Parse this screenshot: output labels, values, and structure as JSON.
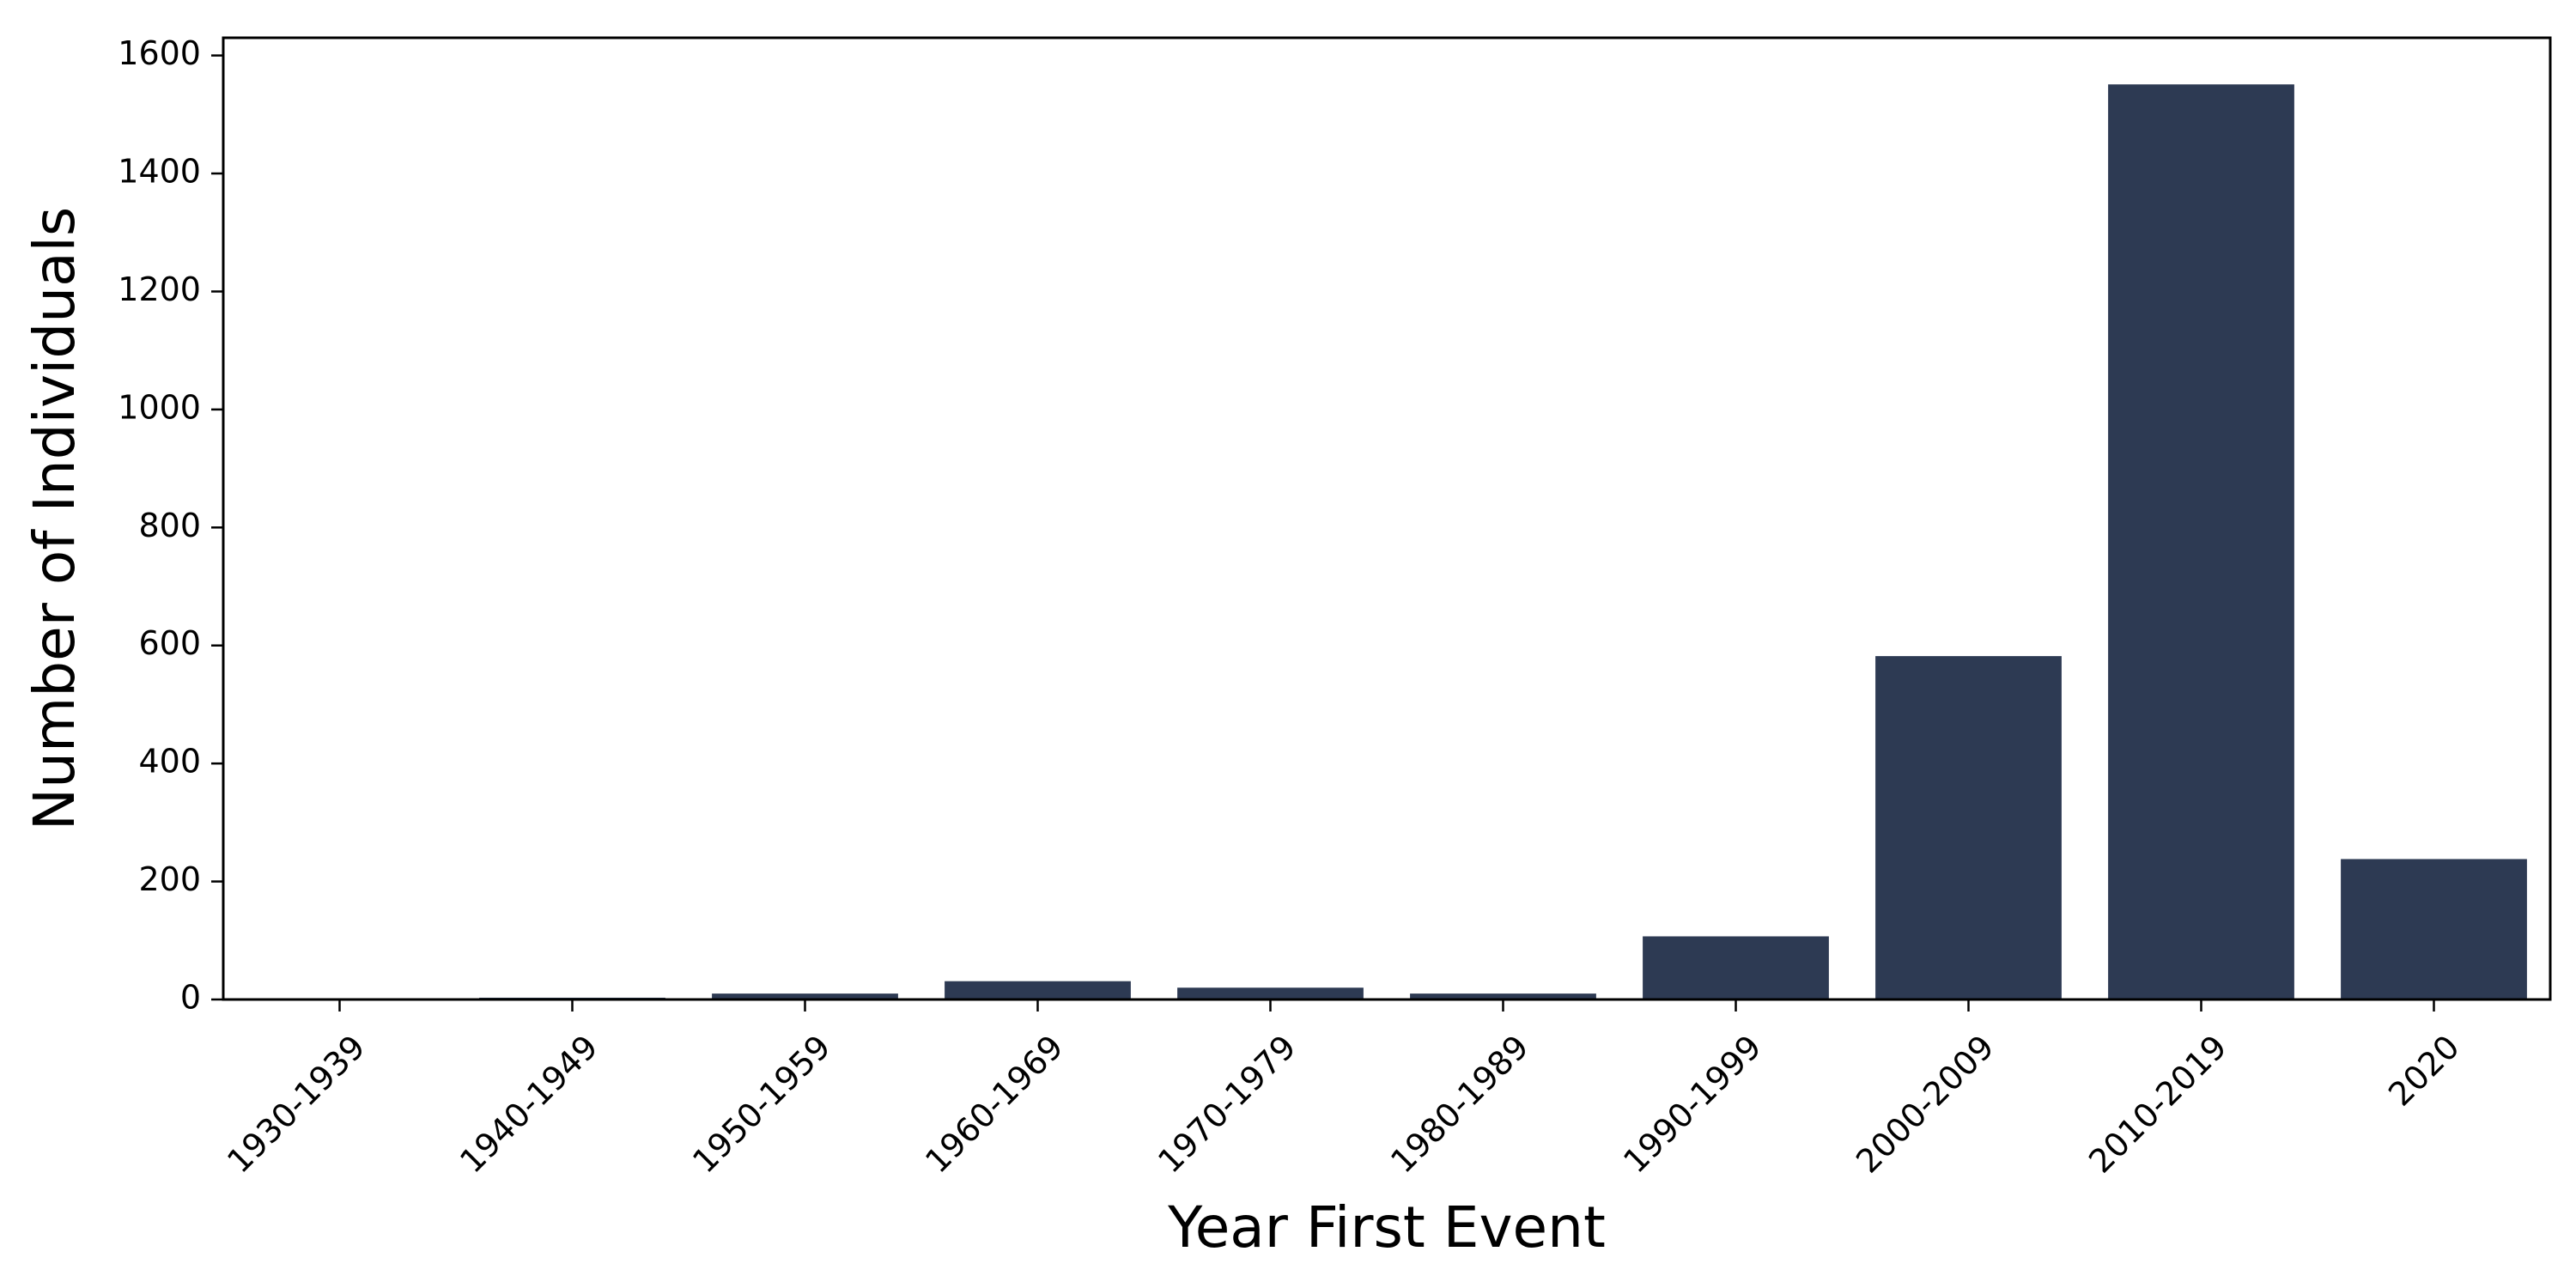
{
  "chart_data": {
    "type": "bar",
    "title": "",
    "xlabel": "Year First Event",
    "ylabel": "Number of Individuals",
    "categories": [
      "1930-1939",
      "1940-1949",
      "1950-1959",
      "1960-1969",
      "1970-1979",
      "1980-1989",
      "1990-1999",
      "2000-2009",
      "2010-2019",
      "2020"
    ],
    "values": [
      1,
      3,
      10,
      31,
      20,
      10,
      107,
      582,
      1551,
      238
    ],
    "ylim": [
      0,
      1630
    ],
    "yticks": [
      0,
      200,
      400,
      600,
      800,
      1000,
      1200,
      1400,
      1600
    ],
    "bar_color": "#2d3a53",
    "grid": false,
    "legend": "none"
  }
}
